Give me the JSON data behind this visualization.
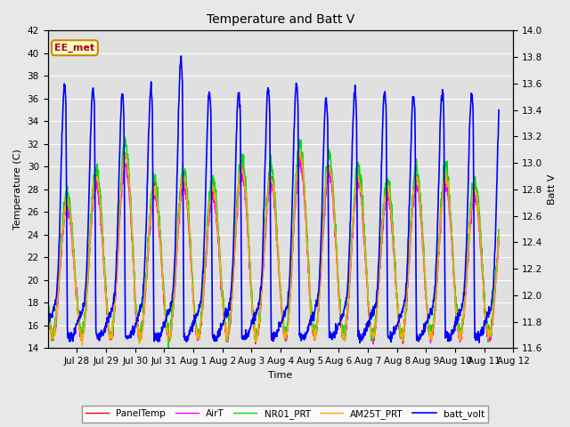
{
  "title": "Temperature and Batt V",
  "xlabel": "Time",
  "ylabel_left": "Temperature (C)",
  "ylabel_right": "Batt V",
  "annotation": "EE_met",
  "ylim_left": [
    14,
    42
  ],
  "ylim_right": [
    11.6,
    14.0
  ],
  "yticks_left": [
    14,
    16,
    18,
    20,
    22,
    24,
    26,
    28,
    30,
    32,
    34,
    36,
    38,
    40,
    42
  ],
  "yticks_right": [
    11.6,
    11.8,
    12.0,
    12.2,
    12.4,
    12.6,
    12.8,
    13.0,
    13.2,
    13.4,
    13.6,
    13.8,
    14.0
  ],
  "fig_bg_color": "#e8e8e8",
  "ax_bg_color": "#e0e0e0",
  "grid_color": "#ffffff",
  "series": {
    "PanelTemp": {
      "color": "#ff0000",
      "lw": 1.0
    },
    "AirT": {
      "color": "#ff00ff",
      "lw": 1.0
    },
    "NR01_PRT": {
      "color": "#00dd00",
      "lw": 1.0
    },
    "AM25T_PRT": {
      "color": "#ffaa00",
      "lw": 1.0
    },
    "batt_volt": {
      "color": "#0000ff",
      "lw": 1.2
    }
  },
  "n_days": 15.5,
  "xtick_labels": [
    "Jul 28",
    "Jul 29",
    "Jul 30",
    "Jul 31",
    "Aug 1",
    "Aug 2",
    "Aug 3",
    "Aug 4",
    "Aug 5",
    "Aug 6",
    "Aug 7",
    "Aug 8",
    "Aug 9",
    "Aug 10",
    "Aug 11",
    "Aug 12"
  ],
  "xtick_positions": [
    1,
    2,
    3,
    4,
    5,
    6,
    7,
    8,
    9,
    10,
    11,
    12,
    13,
    14,
    15,
    16
  ],
  "annotation_facecolor": "#ffffcc",
  "annotation_edgecolor": "#cc8800",
  "annotation_textcolor": "#aa0000"
}
